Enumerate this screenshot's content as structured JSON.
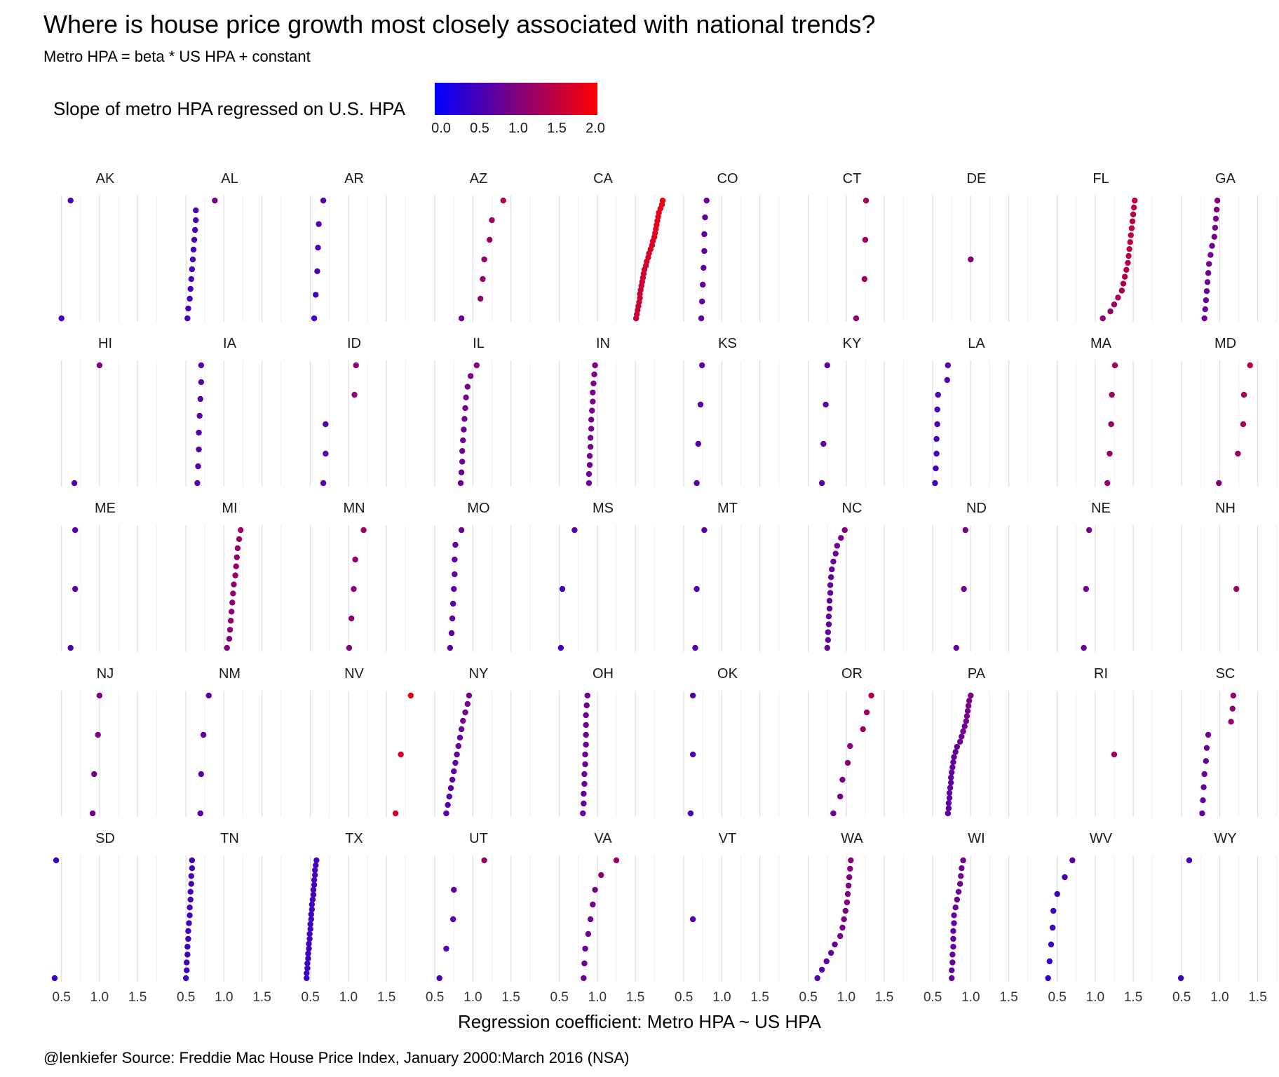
{
  "chart_data": {
    "type": "scatter",
    "title": "Where is house price growth most closely associated with national trends?",
    "subtitle": "Metro HPA = beta * US HPA + constant",
    "xlabel": "Regression coefficient: Metro HPA ~ US HPA",
    "caption": "@lenkiefer Source: Freddie Mac House Price Index, January 2000:March 2016 (NSA)",
    "legend": {
      "title": "Slope of metro HPA regressed on U.S. HPA",
      "ticks": [
        "0.0",
        "0.5",
        "1.0",
        "1.5",
        "2.0"
      ],
      "range": [
        0,
        2
      ],
      "color_low": "#0000ff",
      "color_high": "#ff0000",
      "placement": "top-left"
    },
    "x_ticks": [
      0.5,
      1.0,
      1.5
    ],
    "x_tick_labels": [
      "0.5",
      "1.0",
      "1.5"
    ],
    "xlim": [
      0.3,
      1.85
    ],
    "grid": true,
    "facets": [
      {
        "state": "AK",
        "values": [
          0.62,
          0.5
        ]
      },
      {
        "state": "AL",
        "values": [
          0.88,
          0.63,
          0.63,
          0.62,
          0.61,
          0.6,
          0.59,
          0.58,
          0.57,
          0.56,
          0.55,
          0.53,
          0.52
        ]
      },
      {
        "state": "AR",
        "values": [
          0.67,
          0.61,
          0.6,
          0.59,
          0.57,
          0.55
        ]
      },
      {
        "state": "AZ",
        "values": [
          1.4,
          1.25,
          1.22,
          1.15,
          1.13,
          1.1,
          0.85
        ]
      },
      {
        "state": "CA",
        "values": [
          1.86,
          1.85,
          1.83,
          1.81,
          1.8,
          1.79,
          1.78,
          1.77,
          1.76,
          1.75,
          1.73,
          1.72,
          1.7,
          1.68,
          1.67,
          1.65,
          1.64,
          1.62,
          1.61,
          1.6,
          1.59,
          1.58,
          1.57,
          1.56,
          1.56,
          1.55,
          1.54,
          1.53,
          1.52,
          1.51
        ]
      },
      {
        "state": "CO",
        "values": [
          0.8,
          0.78,
          0.77,
          0.77,
          0.76,
          0.75,
          0.74,
          0.73
        ]
      },
      {
        "state": "CT",
        "values": [
          1.26,
          1.25,
          1.24,
          1.13
        ]
      },
      {
        "state": "DE",
        "values": [
          1.0
        ]
      },
      {
        "state": "FL",
        "values": [
          1.52,
          1.51,
          1.5,
          1.49,
          1.48,
          1.47,
          1.46,
          1.45,
          1.44,
          1.43,
          1.41,
          1.39,
          1.37,
          1.35,
          1.3,
          1.25,
          1.2,
          1.1
        ]
      },
      {
        "state": "GA",
        "values": [
          0.97,
          0.96,
          0.95,
          0.94,
          0.93,
          0.9,
          0.88,
          0.86,
          0.85,
          0.84,
          0.83,
          0.82,
          0.81,
          0.8
        ]
      },
      {
        "state": "HI",
        "values": [
          1.0,
          0.67
        ]
      },
      {
        "state": "IA",
        "values": [
          0.7,
          0.7,
          0.69,
          0.68,
          0.67,
          0.67,
          0.66,
          0.65
        ]
      },
      {
        "state": "ID",
        "values": [
          1.1,
          1.08,
          0.7,
          0.7,
          0.67
        ]
      },
      {
        "state": "IL",
        "values": [
          1.05,
          0.97,
          0.93,
          0.91,
          0.9,
          0.89,
          0.88,
          0.87,
          0.86,
          0.86,
          0.85,
          0.84
        ]
      },
      {
        "state": "IN",
        "values": [
          0.97,
          0.96,
          0.95,
          0.94,
          0.94,
          0.93,
          0.92,
          0.92,
          0.91,
          0.91,
          0.9,
          0.9,
          0.89,
          0.89
        ]
      },
      {
        "state": "KS",
        "values": [
          0.74,
          0.72,
          0.69,
          0.67
        ]
      },
      {
        "state": "KY",
        "values": [
          0.75,
          0.73,
          0.7,
          0.68
        ]
      },
      {
        "state": "LA",
        "values": [
          0.7,
          0.69,
          0.57,
          0.56,
          0.56,
          0.55,
          0.55,
          0.54,
          0.53
        ]
      },
      {
        "state": "MA",
        "values": [
          1.26,
          1.22,
          1.21,
          1.19,
          1.16
        ]
      },
      {
        "state": "MD",
        "values": [
          1.4,
          1.32,
          1.31,
          1.24,
          0.99
        ]
      },
      {
        "state": "ME",
        "values": [
          0.68,
          0.68,
          0.62
        ]
      },
      {
        "state": "MI",
        "values": [
          1.22,
          1.2,
          1.18,
          1.17,
          1.16,
          1.15,
          1.13,
          1.12,
          1.11,
          1.1,
          1.09,
          1.08,
          1.07,
          1.04
        ]
      },
      {
        "state": "MN",
        "values": [
          1.2,
          1.09,
          1.07,
          1.04,
          1.01
        ]
      },
      {
        "state": "MO",
        "values": [
          0.85,
          0.77,
          0.76,
          0.76,
          0.75,
          0.74,
          0.73,
          0.72,
          0.7
        ]
      },
      {
        "state": "MS",
        "values": [
          0.7,
          0.54,
          0.52
        ]
      },
      {
        "state": "MT",
        "values": [
          0.77,
          0.67,
          0.65
        ]
      },
      {
        "state": "NC",
        "values": [
          0.98,
          0.93,
          0.88,
          0.86,
          0.83,
          0.81,
          0.8,
          0.79,
          0.79,
          0.78,
          0.78,
          0.77,
          0.77,
          0.76,
          0.76,
          0.75
        ]
      },
      {
        "state": "ND",
        "values": [
          0.93,
          0.91,
          0.81
        ]
      },
      {
        "state": "NE",
        "values": [
          0.92,
          0.88,
          0.85
        ]
      },
      {
        "state": "NH",
        "values": [
          1.22
        ]
      },
      {
        "state": "NJ",
        "values": [
          1.0,
          0.98,
          0.93,
          0.91
        ]
      },
      {
        "state": "NM",
        "values": [
          0.8,
          0.73,
          0.7,
          0.69
        ]
      },
      {
        "state": "NV",
        "values": [
          1.82,
          1.69,
          1.62
        ]
      },
      {
        "state": "NY",
        "values": [
          0.95,
          0.93,
          0.9,
          0.87,
          0.85,
          0.83,
          0.81,
          0.79,
          0.77,
          0.75,
          0.73,
          0.71,
          0.69,
          0.67,
          0.65
        ]
      },
      {
        "state": "OH",
        "values": [
          0.87,
          0.86,
          0.85,
          0.85,
          0.85,
          0.85,
          0.84,
          0.84,
          0.83,
          0.83,
          0.82,
          0.82,
          0.81
        ]
      },
      {
        "state": "OK",
        "values": [
          0.62,
          0.62,
          0.59
        ]
      },
      {
        "state": "OR",
        "values": [
          1.33,
          1.27,
          1.22,
          1.05,
          1.02,
          0.95,
          0.92,
          0.83
        ]
      },
      {
        "state": "PA",
        "values": [
          1.0,
          0.98,
          0.97,
          0.96,
          0.95,
          0.94,
          0.92,
          0.9,
          0.88,
          0.86,
          0.82,
          0.8,
          0.78,
          0.77,
          0.76,
          0.75,
          0.74,
          0.74,
          0.73,
          0.72,
          0.72,
          0.71,
          0.71,
          0.7
        ]
      },
      {
        "state": "RI",
        "values": [
          1.25
        ]
      },
      {
        "state": "SC",
        "values": [
          1.18,
          1.17,
          1.15,
          0.85,
          0.83,
          0.82,
          0.8,
          0.79,
          0.78,
          0.77
        ]
      },
      {
        "state": "SD",
        "values": [
          0.43,
          0.41
        ]
      },
      {
        "state": "TN",
        "values": [
          0.58,
          0.58,
          0.57,
          0.57,
          0.56,
          0.56,
          0.55,
          0.55,
          0.54,
          0.53,
          0.53,
          0.52,
          0.52,
          0.51,
          0.51,
          0.5
        ]
      },
      {
        "state": "TX",
        "values": [
          0.58,
          0.57,
          0.56,
          0.56,
          0.55,
          0.55,
          0.54,
          0.54,
          0.53,
          0.52,
          0.52,
          0.51,
          0.51,
          0.5,
          0.5,
          0.49,
          0.49,
          0.48,
          0.48,
          0.47,
          0.47,
          0.46,
          0.46,
          0.45,
          0.45
        ]
      },
      {
        "state": "UT",
        "values": [
          1.15,
          0.75,
          0.74,
          0.65,
          0.56
        ]
      },
      {
        "state": "VA",
        "values": [
          1.25,
          1.05,
          0.97,
          0.94,
          0.91,
          0.88,
          0.84,
          0.83,
          0.82
        ]
      },
      {
        "state": "VT",
        "values": [
          0.62
        ]
      },
      {
        "state": "WA",
        "values": [
          1.06,
          1.05,
          1.04,
          1.03,
          1.02,
          1.01,
          0.99,
          0.97,
          0.95,
          0.92,
          0.85,
          0.8,
          0.74,
          0.68,
          0.62
        ]
      },
      {
        "state": "WI",
        "values": [
          0.9,
          0.88,
          0.87,
          0.86,
          0.84,
          0.82,
          0.8,
          0.78,
          0.78,
          0.77,
          0.77,
          0.77,
          0.76,
          0.76,
          0.75,
          0.75
        ]
      },
      {
        "state": "WV",
        "values": [
          0.7,
          0.6,
          0.5,
          0.45,
          0.44,
          0.42,
          0.4,
          0.38
        ]
      },
      {
        "state": "WY",
        "values": [
          0.6,
          0.49
        ]
      }
    ]
  }
}
